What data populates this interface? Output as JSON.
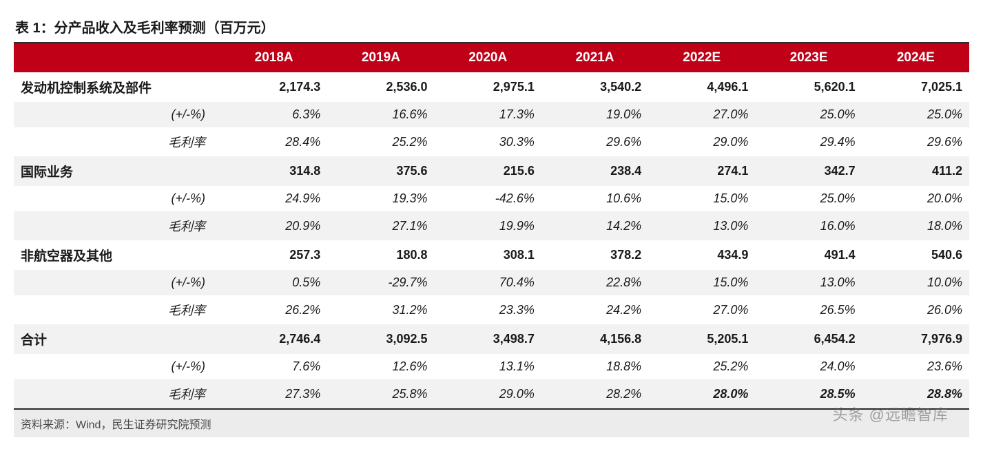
{
  "title": "表 1：分产品收入及毛利率预测（百万元）",
  "columns": [
    "2018A",
    "2019A",
    "2020A",
    "2021A",
    "2022E",
    "2023E",
    "2024E"
  ],
  "sublabels": {
    "growth": "(+/-%)",
    "margin": "毛利率"
  },
  "segments": [
    {
      "name": "发动机控制系统及部件",
      "revenue": [
        "2,174.3",
        "2,536.0",
        "2,975.1",
        "3,540.2",
        "4,496.1",
        "5,620.1",
        "7,025.1"
      ],
      "growth": [
        "6.3%",
        "16.6%",
        "17.3%",
        "19.0%",
        "27.0%",
        "25.0%",
        "25.0%"
      ],
      "margin": [
        "28.4%",
        "25.2%",
        "30.3%",
        "29.6%",
        "29.0%",
        "29.4%",
        "29.6%"
      ]
    },
    {
      "name": "国际业务",
      "revenue": [
        "314.8",
        "375.6",
        "215.6",
        "238.4",
        "274.1",
        "342.7",
        "411.2"
      ],
      "growth": [
        "24.9%",
        "19.3%",
        "-42.6%",
        "10.6%",
        "15.0%",
        "25.0%",
        "20.0%"
      ],
      "margin": [
        "20.9%",
        "27.1%",
        "19.9%",
        "14.2%",
        "13.0%",
        "16.0%",
        "18.0%"
      ]
    },
    {
      "name": "非航空器及其他",
      "revenue": [
        "257.3",
        "180.8",
        "308.1",
        "378.2",
        "434.9",
        "491.4",
        "540.6"
      ],
      "growth": [
        "0.5%",
        "-29.7%",
        "70.4%",
        "22.8%",
        "15.0%",
        "13.0%",
        "10.0%"
      ],
      "margin": [
        "26.2%",
        "31.2%",
        "23.3%",
        "24.2%",
        "27.0%",
        "26.5%",
        "26.0%"
      ]
    }
  ],
  "total": {
    "name": "合计",
    "revenue": [
      "2,746.4",
      "3,092.5",
      "3,498.7",
      "4,156.8",
      "5,205.1",
      "6,454.2",
      "7,976.9"
    ],
    "growth": [
      "7.6%",
      "12.6%",
      "13.1%",
      "18.8%",
      "25.2%",
      "24.0%",
      "23.6%"
    ],
    "margin": [
      "27.3%",
      "25.8%",
      "29.0%",
      "28.2%",
      "28.0%",
      "28.5%",
      "28.8%"
    ]
  },
  "footer": "资料来源：Wind，民生证券研究院预测",
  "watermark": "头条 @远瞻智库",
  "colors": {
    "header_bg": "#c00016",
    "header_fg": "#ffffff",
    "shade_bg": "#f2f2f2",
    "border": "#2a2a2a",
    "footer_bg": "#ececec"
  },
  "type": "table"
}
